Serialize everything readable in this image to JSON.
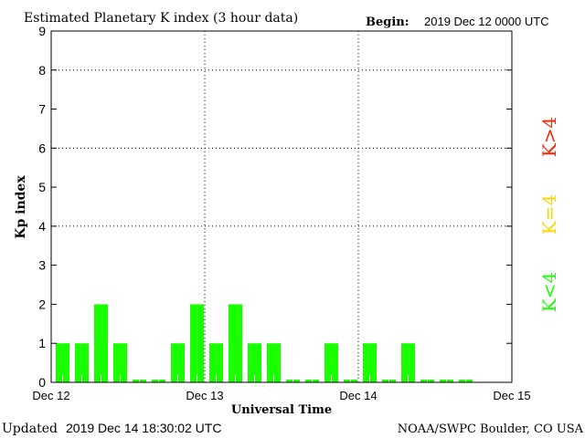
{
  "chart_data": {
    "type": "bar",
    "title": "Estimated Planetary K index (3 hour data)",
    "begin_label": "Begin:",
    "begin_value": "2019 Dec 12 0000 UTC",
    "xlabel": "Universal Time",
    "ylabel": "Kp index",
    "ylim": [
      0,
      9
    ],
    "yticks": [
      "0",
      "1",
      "2",
      "3",
      "4",
      "5",
      "6",
      "7",
      "8",
      "9"
    ],
    "xticks": [
      "Dec 12",
      "Dec 13",
      "Dec 14",
      "Dec 15"
    ],
    "interval_hours": 3,
    "grid": "dotted at Kp 4, 6, 8 and day boundaries",
    "values": [
      1,
      1,
      2,
      1,
      0,
      0,
      1,
      2,
      1,
      2,
      1,
      1,
      0,
      0,
      1,
      0,
      1,
      0,
      1,
      0,
      0,
      0
    ],
    "bar_color": "#1aff00",
    "legend": [
      {
        "label": "K>4",
        "color": "#ff2000"
      },
      {
        "label": "K=4",
        "color": "#ffd700"
      },
      {
        "label": "K<4",
        "color": "#1aff00"
      }
    ],
    "legend_placement": "right"
  },
  "footer": {
    "updated_label": "Updated",
    "updated_value": "2019 Dec 14 18:30:02 UTC",
    "source": "NOAA/SWPC Boulder, CO USA"
  }
}
